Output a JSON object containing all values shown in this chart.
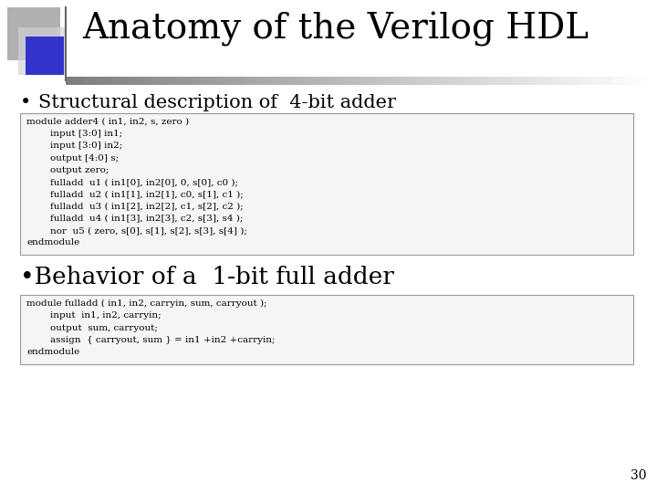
{
  "title": "Anatomy of the Verilog HDL",
  "title_fontsize": 28,
  "title_color": "#000000",
  "bg_color": "#ffffff",
  "bullet1_text": "Structural description of  4-bit adder",
  "bullet1_fontsize": 15,
  "bullet2_text": "•Behavior of a  1-bit full adder",
  "bullet2_fontsize": 19,
  "code_box1": [
    "module adder4 ( in1, in2, s, zero )",
    "        input [3:0] in1;",
    "        input [3:0] in2;",
    "        output [4:0] s;",
    "        output zero;",
    "        fulladd  u1 ( in1[0], in2[0], 0, s[0], c0 );",
    "        fulladd  u2 ( in1[1], in2[1], c0, s[1], c1 );",
    "        fulladd  u3 ( in1[2], in2[2], c1, s[2], c2 );",
    "        fulladd  u4 ( in1[3], in2[3], c2, s[3], s4 );",
    "        nor  u5 ( zero, s[0], s[1], s[2], s[3], s[4] );",
    "endmodule"
  ],
  "code_box2": [
    "module fulladd ( in1, in2, carryin, sum, carryout );",
    "        input  in1, in2, carryin;",
    "        output  sum, carryout;",
    "        assign  { carryout, sum } = in1 +in2 +carryin;",
    "endmodule"
  ],
  "code_fontsize": 7.5,
  "box_bg": "#f5f5f5",
  "box_edge": "#999999",
  "page_number": "30",
  "square1_color": "#b0b0b0",
  "square2_color": "#3333cc",
  "square1_light_color": "#d0d0d8"
}
